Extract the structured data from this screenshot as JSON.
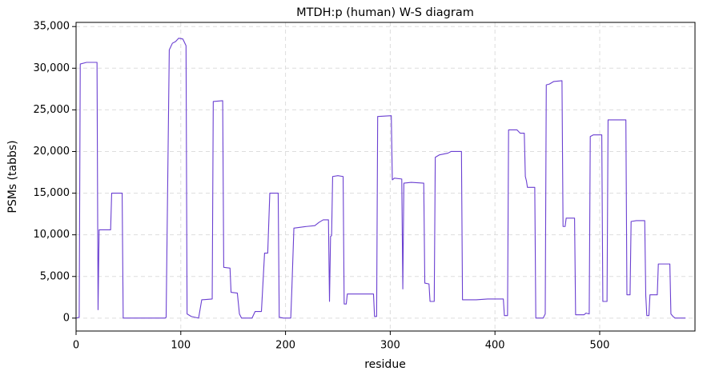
{
  "chart_data": {
    "type": "line",
    "title": "MTDH:p (human) W-S diagram",
    "xlabel": "residue",
    "ylabel": "PSMs (tabbs)",
    "grid": true,
    "xlim": [
      0,
      591
    ],
    "ylim": [
      -1550,
      35500
    ],
    "xticks": [
      0,
      100,
      200,
      300,
      400,
      500
    ],
    "yticks": [
      0,
      {
        "value": 5000,
        "label": "5,000"
      },
      {
        "value": 10000,
        "label": "10,000"
      },
      {
        "value": 15000,
        "label": "15,000"
      },
      {
        "value": 20000,
        "label": "20,000"
      },
      {
        "value": 25000,
        "label": "25,000"
      },
      {
        "value": 30000,
        "label": "30,000"
      },
      {
        "value": 35000,
        "label": "35,000"
      }
    ],
    "x": [
      0,
      3,
      4,
      10,
      20,
      21,
      22,
      33,
      34,
      44,
      45,
      85,
      86,
      89,
      92,
      95,
      98,
      102,
      105,
      106,
      110,
      117,
      120,
      130,
      131,
      140,
      141,
      147,
      148,
      154,
      156,
      158,
      168,
      171,
      177,
      180,
      183,
      185,
      193,
      194,
      198,
      205,
      206,
      208,
      220,
      228,
      232,
      236,
      241,
      242,
      243,
      244,
      245,
      250,
      255,
      256,
      258,
      259,
      284,
      285,
      287,
      288,
      301,
      302,
      304,
      311,
      312,
      313,
      320,
      332,
      333,
      337,
      338,
      342,
      343,
      347,
      355,
      358,
      368,
      369,
      382,
      393,
      408,
      409,
      412,
      413,
      421,
      424,
      428,
      429,
      430,
      431,
      438,
      439,
      446,
      448,
      449,
      452,
      456,
      464,
      465,
      467,
      468,
      476,
      477,
      485,
      487,
      490,
      491,
      494,
      502,
      503,
      507,
      508,
      525,
      526,
      529,
      530,
      535,
      543,
      544,
      545,
      547,
      548,
      555,
      556,
      567,
      568,
      570,
      572,
      582
    ],
    "series": [
      {
        "color": "#6a3fd1",
        "values": [
          0,
          100,
          30500,
          30700,
          30700,
          1000,
          10600,
          10600,
          15000,
          15000,
          0,
          0,
          100,
          32200,
          33000,
          33200,
          33600,
          33500,
          32700,
          500,
          200,
          0,
          2200,
          2300,
          26000,
          26100,
          6100,
          6000,
          3100,
          3000,
          500,
          0,
          0,
          800,
          800,
          7800,
          7800,
          15000,
          15000,
          100,
          0,
          0,
          3300,
          10800,
          11000,
          11100,
          11500,
          11800,
          11800,
          2000,
          9800,
          9900,
          17000,
          17100,
          17000,
          1700,
          1700,
          2900,
          2900,
          200,
          200,
          24200,
          24300,
          16600,
          16800,
          16700,
          3500,
          16200,
          16300,
          16200,
          4200,
          4100,
          2000,
          2000,
          19300,
          19600,
          19800,
          20000,
          20000,
          2200,
          2200,
          2300,
          2300,
          300,
          300,
          22600,
          22600,
          22200,
          22200,
          17000,
          16500,
          15700,
          15700,
          0,
          0,
          500,
          28000,
          28100,
          28400,
          28500,
          11000,
          11000,
          12000,
          12000,
          400,
          400,
          600,
          500,
          21800,
          22000,
          22000,
          2000,
          2000,
          23800,
          23800,
          2800,
          2800,
          11600,
          11700,
          11700,
          2700,
          300,
          300,
          2800,
          2800,
          6500,
          6500,
          500,
          200,
          0,
          0
        ]
      }
    ]
  }
}
